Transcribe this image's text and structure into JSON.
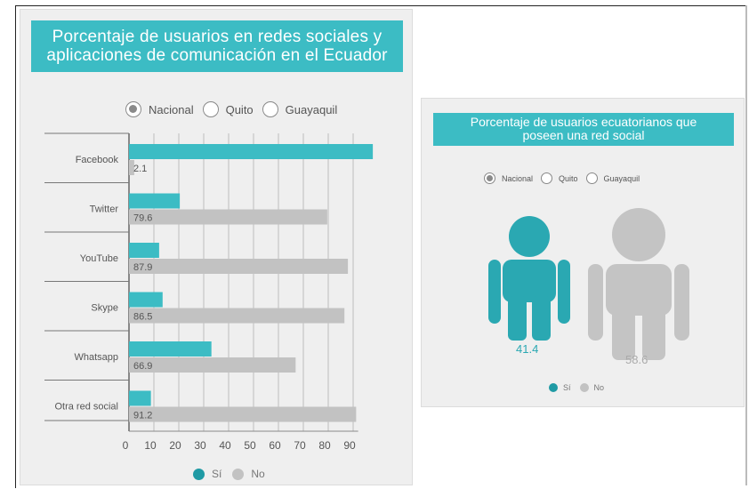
{
  "colors": {
    "accent": "#3cbcc4",
    "no": "#c2c2c2",
    "si_dark": "#1f9aa4"
  },
  "left_panel": {
    "title_line1": "Porcentaje de usuarios en redes sociales y",
    "title_line2": "aplicaciones de comunicación en el Ecuador",
    "radio": [
      {
        "label": "Nacional",
        "checked": true
      },
      {
        "label": "Quito",
        "checked": false
      },
      {
        "label": "Guayaquil",
        "checked": false
      }
    ],
    "legend": {
      "si": "Sí",
      "no": "No"
    }
  },
  "right_panel": {
    "title_line1": "Porcentaje de usuarios ecuatorianos que",
    "title_line2": "poseen una red social",
    "radio": [
      {
        "label": "Nacional",
        "checked": true
      },
      {
        "label": "Quito",
        "checked": false
      },
      {
        "label": "Guayaquil",
        "checked": false
      }
    ],
    "si_value": "41.4",
    "no_value": "58.6",
    "legend": {
      "si": "Sí",
      "no": "No"
    }
  },
  "chart_data": [
    {
      "type": "bar",
      "orientation": "horizontal",
      "title": "Porcentaje de usuarios en redes sociales y aplicaciones de comunicación en el Ecuador",
      "categories": [
        "Facebook",
        "Twitter",
        "YouTube",
        "Skype",
        "Whatsapp",
        "Otra red social"
      ],
      "series": [
        {
          "name": "Sí",
          "values": [
            97.9,
            20.4,
            12.1,
            13.5,
            33.1,
            8.8
          ],
          "labels": [
            "",
            "",
            "",
            "",
            "",
            ""
          ],
          "color": "#3cbcc4"
        },
        {
          "name": "No",
          "values": [
            2.1,
            79.6,
            87.9,
            86.5,
            66.9,
            91.2
          ],
          "labels": [
            "2.1",
            "79.6",
            "87.9",
            "86.5",
            "66.9",
            "91.2"
          ],
          "color": "#c2c2c2"
        }
      ],
      "xticks": [
        "0",
        "10",
        "20",
        "30",
        "40",
        "50",
        "60",
        "70",
        "80",
        "90"
      ],
      "xlim": [
        0,
        100
      ],
      "grid": true,
      "legend": "bottom"
    },
    {
      "type": "pictogram",
      "title": "Porcentaje de usuarios ecuatorianos que poseen una red social",
      "categories": [
        "Sí",
        "No"
      ],
      "values": [
        41.4,
        58.6
      ],
      "legend": "bottom"
    }
  ]
}
